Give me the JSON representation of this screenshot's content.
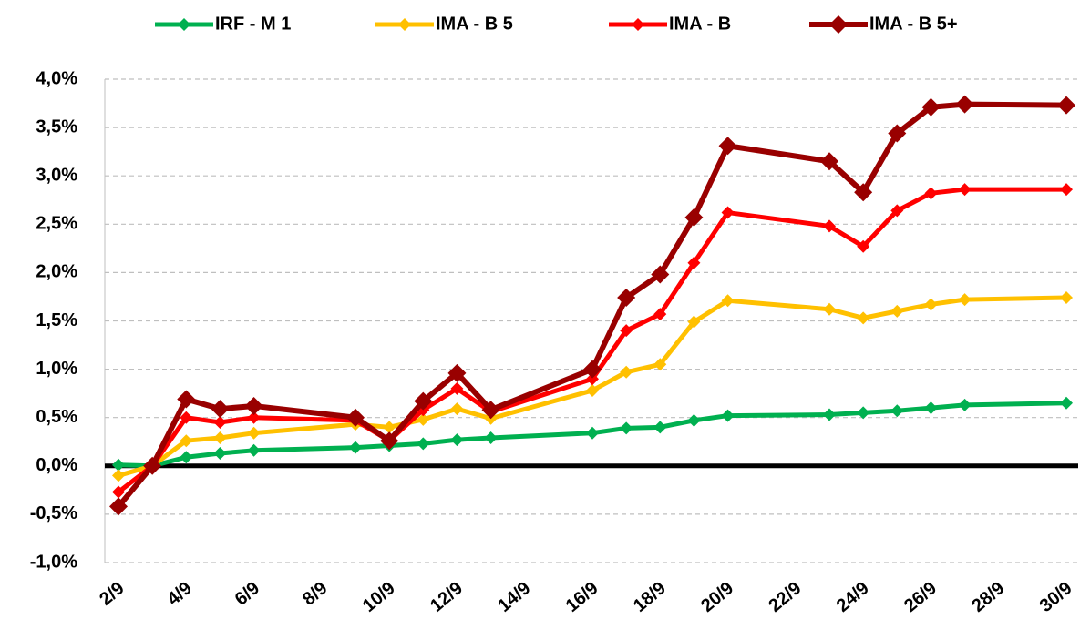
{
  "chart_data": {
    "type": "line",
    "x": [
      "2/9",
      "3/9",
      "4/9",
      "5/9",
      "6/9",
      "9/9",
      "10/9",
      "11/9",
      "12/9",
      "13/9",
      "16/9",
      "17/9",
      "18/9",
      "19/9",
      "20/9",
      "23/9",
      "24/9",
      "25/9",
      "26/9",
      "27/9",
      "30/9"
    ],
    "xticks": [
      "2/9",
      "4/9",
      "6/9",
      "8/9",
      "10/9",
      "12/9",
      "14/9",
      "16/9",
      "18/9",
      "20/9",
      "22/9",
      "24/9",
      "26/9",
      "28/9",
      "30/9"
    ],
    "series": [
      {
        "name": "IRF - M 1",
        "color": "#00b050",
        "values": [
          0.01,
          0.0,
          0.09,
          0.13,
          0.16,
          0.19,
          0.21,
          0.23,
          0.27,
          0.29,
          0.34,
          0.39,
          0.4,
          0.47,
          0.52,
          0.53,
          0.55,
          0.57,
          0.6,
          0.63,
          0.65
        ]
      },
      {
        "name": "IMA - B 5",
        "color": "#ffc000",
        "values": [
          -0.1,
          0.0,
          0.26,
          0.29,
          0.34,
          0.43,
          0.4,
          0.48,
          0.59,
          0.49,
          0.78,
          0.97,
          1.05,
          1.49,
          1.71,
          1.62,
          1.53,
          1.6,
          1.67,
          1.72,
          1.74
        ]
      },
      {
        "name": "IMA - B",
        "color": "#ff0000",
        "values": [
          -0.27,
          0.0,
          0.5,
          0.45,
          0.5,
          0.47,
          0.26,
          0.58,
          0.8,
          0.56,
          0.9,
          1.4,
          1.57,
          2.1,
          2.62,
          2.48,
          2.27,
          2.64,
          2.82,
          2.86,
          2.86
        ]
      },
      {
        "name": "IMA - B 5+",
        "color": "#990000",
        "values": [
          -0.42,
          0.0,
          0.69,
          0.59,
          0.62,
          0.5,
          0.26,
          0.67,
          0.96,
          0.58,
          1.0,
          1.74,
          1.98,
          2.57,
          3.31,
          3.15,
          2.83,
          3.44,
          3.71,
          3.74,
          3.73
        ]
      }
    ],
    "ylim": [
      -1,
      4
    ],
    "yticks": [
      {
        "value": -1,
        "label": "-1,0%"
      },
      {
        "value": -0.5,
        "label": "-0,5%"
      },
      {
        "value": 0,
        "label": "0,0%"
      },
      {
        "value": 0.5,
        "label": "0,5%"
      },
      {
        "value": 1,
        "label": "1,0%"
      },
      {
        "value": 1.5,
        "label": "1,5%"
      },
      {
        "value": 2,
        "label": "2,0%"
      },
      {
        "value": 2.5,
        "label": "2,5%"
      },
      {
        "value": 3,
        "label": "3,0%"
      },
      {
        "value": 3.5,
        "label": "3,5%"
      },
      {
        "value": 4,
        "label": "4,0%"
      }
    ],
    "grid": true,
    "legend": "top"
  }
}
